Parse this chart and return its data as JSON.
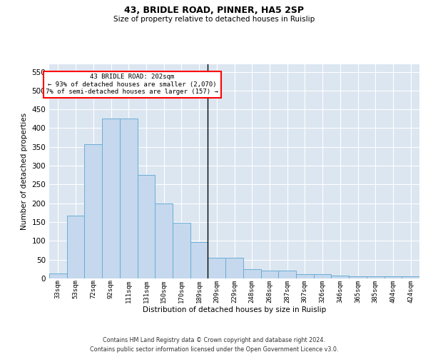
{
  "title": "43, BRIDLE ROAD, PINNER, HA5 2SP",
  "subtitle": "Size of property relative to detached houses in Ruislip",
  "xlabel": "Distribution of detached houses by size in Ruislip",
  "ylabel": "Number of detached properties",
  "categories": [
    "33sqm",
    "53sqm",
    "72sqm",
    "92sqm",
    "111sqm",
    "131sqm",
    "150sqm",
    "170sqm",
    "189sqm",
    "209sqm",
    "229sqm",
    "248sqm",
    "268sqm",
    "287sqm",
    "307sqm",
    "326sqm",
    "346sqm",
    "365sqm",
    "385sqm",
    "404sqm",
    "424sqm"
  ],
  "values": [
    13,
    168,
    357,
    425,
    425,
    275,
    200,
    148,
    96,
    55,
    55,
    25,
    20,
    20,
    12,
    12,
    7,
    5,
    5,
    5,
    5
  ],
  "bar_color": "#c5d8ed",
  "bar_edge_color": "#6aadd5",
  "vline_index": 8.5,
  "marker_label": "43 BRIDLE ROAD: 202sqm",
  "annotation_line1": "← 93% of detached houses are smaller (2,070)",
  "annotation_line2": "7% of semi-detached houses are larger (157) →",
  "ylim": [
    0,
    570
  ],
  "yticks": [
    0,
    50,
    100,
    150,
    200,
    250,
    300,
    350,
    400,
    450,
    500,
    550
  ],
  "background_color": "#dce6f1",
  "grid_color": "white",
  "footer_line1": "Contains HM Land Registry data © Crown copyright and database right 2024.",
  "footer_line2": "Contains public sector information licensed under the Open Government Licence v3.0."
}
